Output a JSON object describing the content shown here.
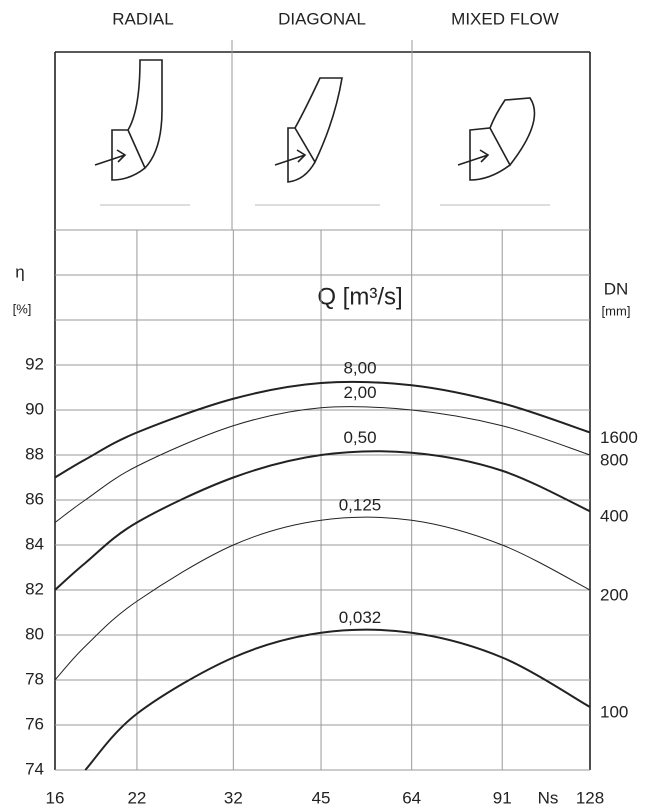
{
  "chart_data": {
    "type": "line",
    "headers": [
      "RADIAL",
      "DIAGONAL",
      "MIXED FLOW"
    ],
    "y_label": "η",
    "y_unit": "[%]",
    "y2_label": "DN",
    "y2_unit": "[mm]",
    "series_title": "Q [m³/s]",
    "x_label": "Ns",
    "x": [
      16,
      18,
      22,
      32,
      45,
      64,
      91,
      128
    ],
    "xlim": [
      16,
      128
    ],
    "xticks": [
      16,
      22,
      32,
      45,
      64,
      91,
      128
    ],
    "xscale": "log",
    "ylim": [
      74,
      92
    ],
    "yticks": [
      74,
      76,
      78,
      80,
      82,
      84,
      86,
      88,
      90,
      92
    ],
    "grid": true,
    "series": [
      {
        "name": "8,00",
        "dn": "1600",
        "color": "#222",
        "line_width": 2,
        "values": [
          87,
          87.8,
          89,
          90.5,
          91.2,
          91.1,
          90.3,
          89
        ]
      },
      {
        "name": "2,00",
        "dn": "800",
        "color": "#222",
        "line_width": 1,
        "values": [
          85,
          86,
          87.5,
          89.3,
          90.1,
          90,
          89.3,
          88
        ]
      },
      {
        "name": "0,50",
        "dn": "400",
        "color": "#222",
        "line_width": 2,
        "values": [
          82,
          83.2,
          85,
          87,
          88,
          88.1,
          87.3,
          85.5
        ]
      },
      {
        "name": "0,125",
        "dn": "200",
        "color": "#222",
        "line_width": 1,
        "values": [
          78,
          79.5,
          81.5,
          84,
          85.1,
          85.1,
          84,
          82
        ]
      },
      {
        "name": "0,032",
        "dn": "100",
        "color": "#222",
        "line_width": 2,
        "values": [
          null,
          74,
          76.5,
          79,
          80.1,
          80.1,
          79,
          76.8
        ]
      }
    ]
  }
}
